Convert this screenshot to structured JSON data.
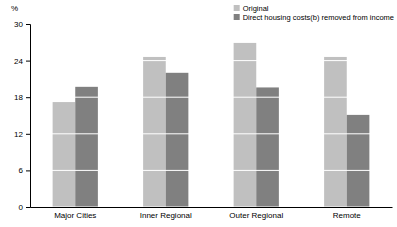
{
  "chart_data": {
    "type": "bar",
    "y_label": "%",
    "categories": [
      "Major Cities",
      "Inner Regional",
      "Outer Regional",
      "Remote"
    ],
    "series": [
      {
        "name": "Original",
        "color": "#c0c0c0",
        "values": [
          17.2,
          24.6,
          26.9,
          24.6
        ]
      },
      {
        "name": "Direct housing costs(b) removed from income",
        "color": "#808080",
        "values": [
          19.7,
          22.0,
          19.6,
          15.1
        ]
      }
    ],
    "ylim": [
      0,
      30
    ],
    "yticks": [
      0,
      6,
      12,
      18,
      24,
      30
    ],
    "grid": true,
    "legend": "top-right"
  }
}
